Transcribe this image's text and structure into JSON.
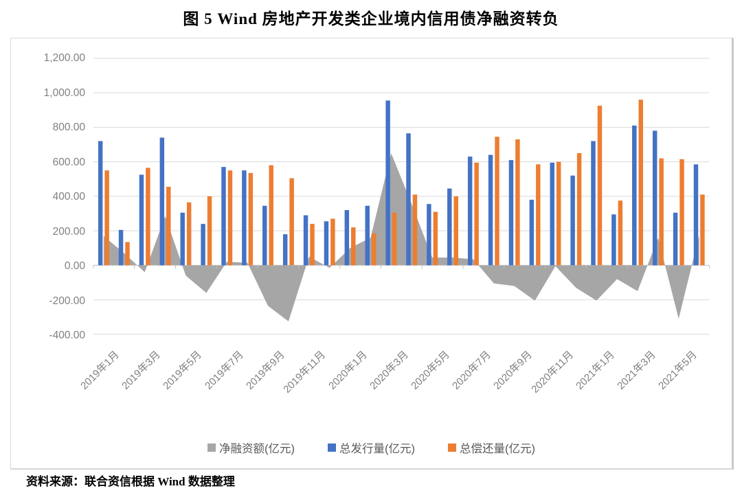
{
  "title": "图 5  Wind 房地产开发类企业境内信用债净融资转负",
  "source": "资料来源：联合资信根据 Wind 数据整理",
  "chart_data": {
    "type": "bar",
    "subtype": "combo-area-and-grouped-bars",
    "unit": "亿元",
    "categories": [
      "2019年1月",
      "2019年2月",
      "2019年3月",
      "2019年4月",
      "2019年5月",
      "2019年6月",
      "2019年7月",
      "2019年8月",
      "2019年9月",
      "2019年10月",
      "2019年11月",
      "2019年12月",
      "2020年1月",
      "2020年2月",
      "2020年3月",
      "2020年4月",
      "2020年5月",
      "2020年6月",
      "2020年7月",
      "2020年8月",
      "2020年9月",
      "2020年10月",
      "2020年11月",
      "2020年12月",
      "2021年1月",
      "2021年2月",
      "2021年3月",
      "2021年4月",
      "2021年5月",
      "2021年6月"
    ],
    "x_tick_labels": [
      "2019年1月",
      "2019年3月",
      "2019年5月",
      "2019年7月",
      "2019年9月",
      "2019年11月",
      "2020年1月",
      "2020年3月",
      "2020年5月",
      "2020年7月",
      "2020年9月",
      "2020年11月",
      "2021年1月",
      "2021年3月",
      "2021年5月"
    ],
    "y_tick_labels": [
      "1,200.00",
      "1,000.00",
      "800.00",
      "600.00",
      "400.00",
      "200.00",
      "0.00",
      "-200.00",
      "-400.00"
    ],
    "ylim": [
      -400,
      1200
    ],
    "ytick_step": 200,
    "grid": true,
    "legend_position": "bottom",
    "series": [
      {
        "name": "净融资额(亿元)",
        "type": "area",
        "color": "#A6A6A6",
        "values": [
          170,
          70,
          -40,
          285,
          -60,
          -160,
          20,
          15,
          -235,
          -325,
          50,
          -15,
          100,
          160,
          650,
          355,
          45,
          45,
          35,
          -105,
          -120,
          -205,
          -5,
          -130,
          -205,
          -80,
          -150,
          160,
          -310,
          175
        ]
      },
      {
        "name": "总发行量(亿元)",
        "type": "bar",
        "color": "#4472C4",
        "values": [
          720,
          205,
          525,
          740,
          305,
          240,
          570,
          550,
          345,
          180,
          290,
          255,
          320,
          345,
          955,
          765,
          355,
          445,
          630,
          640,
          610,
          380,
          595,
          520,
          720,
          295,
          810,
          780,
          305,
          585
        ]
      },
      {
        "name": "总偿还量(亿元)",
        "type": "bar",
        "color": "#ED7D31",
        "values": [
          550,
          135,
          565,
          455,
          365,
          400,
          550,
          535,
          580,
          505,
          240,
          270,
          220,
          185,
          305,
          410,
          310,
          400,
          595,
          745,
          730,
          585,
          600,
          650,
          925,
          375,
          960,
          620,
          615,
          410
        ]
      }
    ],
    "colors": {
      "gridline": "#D9D9D9",
      "axis_line": "#BFBFBF",
      "tick_label": "#7F7F7F",
      "legend_text": "#595959"
    }
  }
}
